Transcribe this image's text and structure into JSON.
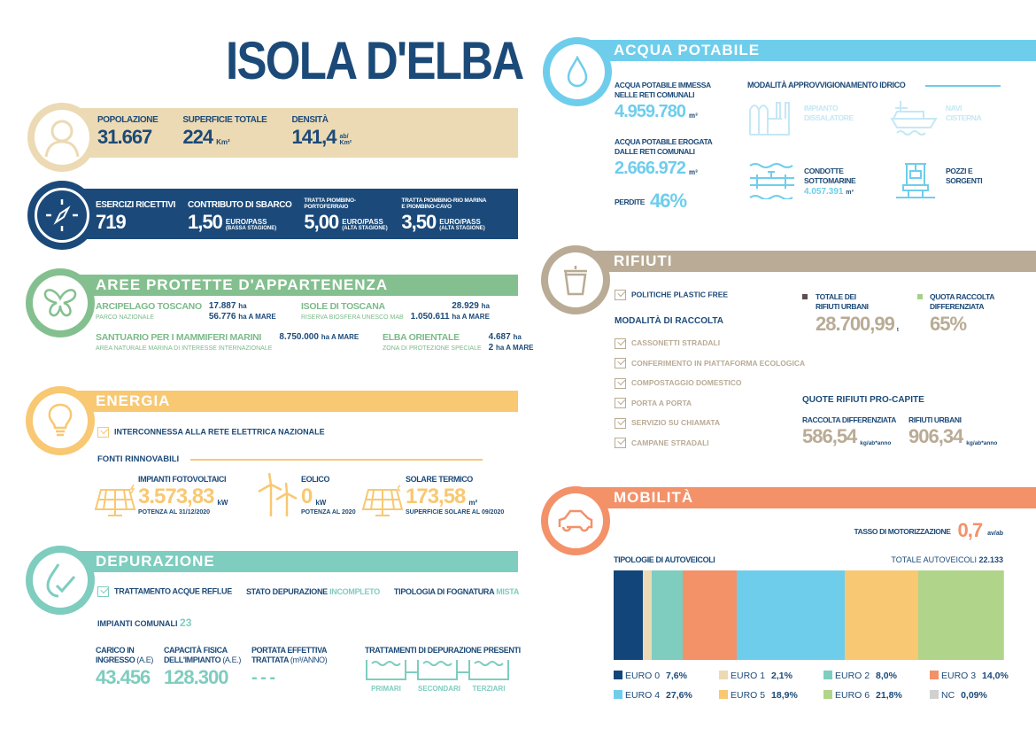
{
  "title": "ISOLA D'ELBA",
  "demografia": {
    "popolazione_label": "POPOLAZIONE",
    "popolazione": "31.667",
    "superficie_label": "SUPERFICIE TOTALE",
    "superficie": "224",
    "superficie_unit": "Km²",
    "densita_label": "DENSITÀ",
    "densita": "141,4",
    "densita_unit": "ab/ Km²"
  },
  "turismo": {
    "esercizi_label": "ESERCIZI RICETTIVI",
    "esercizi": "719",
    "contributo_label": "CONTRIBUTO DI SBARCO",
    "contributo": "1,50",
    "contributo_unit": "EURO/PASS",
    "contributo_note": "(BASSA STAGIONE)",
    "tratta1_label": "TRATTA PIOMBINO-PORTOFERRAIO",
    "tratta1": "5,00",
    "tratta1_unit": "EURO/PASS",
    "tratta1_note": "(ALTA STAGIONE)",
    "tratta2_label": "TRATTA PIOMBINO-RIO MARINA E PIOMBINO-CAVO",
    "tratta2": "3,50",
    "tratta2_unit": "EURO/PASS",
    "tratta2_note": "(ALTA STAGIONE)"
  },
  "aree": {
    "title": "AREE PROTETTE D'APPARTENENZA",
    "arcipelago": {
      "name": "ARCIPELAGO TOSCANO",
      "sub": "PARCO NAZIONALE",
      "v1": "17.887",
      "u1": "ha",
      "v2": "56.776",
      "u2": "ha A MARE"
    },
    "isole": {
      "name": "ISOLE DI TOSCANA",
      "sub": "RISERVA BIOSFERA UNESCO MAB",
      "v1": "28.929",
      "u1": "ha",
      "v2": "1.050.611",
      "u2": "ha A MARE"
    },
    "santuario": {
      "name": "SANTUARIO PER I MAMMIFERI MARINI",
      "sub": "AREA NATURALE MARINA DI INTERESSE INTERNAZIONALE",
      "v1": "8.750.000",
      "u1": "ha A MARE"
    },
    "elba": {
      "name": "ELBA ORIENTALE",
      "sub": "ZONA DI PROTEZIONE SPECIALE",
      "v1": "4.687",
      "u1": "ha",
      "v2": "2",
      "u2": "ha A MARE"
    }
  },
  "energia": {
    "title": "ENERGIA",
    "interconnessa": "INTERCONNESSA ALLA RETE ELETTRICA NAZIONALE",
    "fonti": "FONTI RINNOVABILI",
    "fv_label": "IMPIANTI FOTOVOLTAICI",
    "fv": "3.573,83",
    "fv_unit": "kW",
    "fv_note": "POTENZA AL 31/12/2020",
    "eolico_label": "EOLICO",
    "eolico": "0",
    "eolico_unit": "kW",
    "eolico_note": "POTENZA AL 2020",
    "st_label": "SOLARE TERMICO",
    "st": "173,58",
    "st_unit": "m²",
    "st_note": "SUPERFICIE SOLARE AL 09/2020"
  },
  "depurazione": {
    "title": "DEPURAZIONE",
    "trattamento": "TRATTAMENTO ACQUE REFLUE",
    "stato_label": "STATO DEPURAZIONE",
    "stato": "INCOMPLETO",
    "fognatura_label": "TIPOLOGIA DI FOGNATURA",
    "fognatura": "MISTA",
    "impianti_label": "IMPIANTI COMUNALI",
    "impianti": "23",
    "carico_l1": "CARICO IN",
    "carico_l2": "INGRESSO",
    "carico_u": "(A.E)",
    "carico": "43.456",
    "capacita_l1": "CAPACITÀ FISICA",
    "capacita_l2": "DELL'IMPIANTO",
    "capacita_u": "(A.E.)",
    "capacita": "128.300",
    "portata_l1": "PORTATA EFFETTIVA",
    "portata_l2": "TRATTATA",
    "portata_u": "(m³/ANNO)",
    "portata": "- - -",
    "trattamenti_label": "TRATTAMENTI DI DEPURAZIONE PRESENTI",
    "trattamenti": [
      "PRIMARI",
      "SECONDARI",
      "TERZIARI"
    ]
  },
  "acqua": {
    "title": "ACQUA POTABILE",
    "immessa_l1": "ACQUA POTABILE IMMESSA",
    "immessa_l2": "NELLE RETI COMUNALI",
    "immessa": "4.959.780",
    "immessa_u": "m³",
    "erogata_l1": "ACQUA POTABILE EROGATA",
    "erogata_l2": "DALLE RETI COMUNALI",
    "erogata": "2.666.972",
    "erogata_u": "m³",
    "perdite_label": "PERDITE",
    "perdite": "46%",
    "modalita": "MODALITÀ APPROVVIGIONAMENTO IDRICO",
    "dissalatore_l1": "IMPIANTO",
    "dissalatore_l2": "DISSALATORE",
    "navi_l1": "NAVI",
    "navi_l2": "CISTERNA",
    "condotte_l1": "CONDOTTE",
    "condotte_l2": "SOTTOMARINE",
    "condotte": "4.057.391",
    "condotte_u": "m³",
    "pozzi_l1": "POZZI E",
    "pozzi_l2": "SORGENTI"
  },
  "rifiuti": {
    "title": "RIFIUTI",
    "plastic": "POLITICHE PLASTIC FREE",
    "modalita": "MODALITÀ DI RACCOLTA",
    "raccolta": [
      "CASSONETTI STRADALI",
      "CONFERIMENTO IN PIATTAFORMA ECOLOGICA",
      "COMPOSTAGGIO DOMESTICO",
      "PORTA A PORTA",
      "SERVIZIO SU CHIAMATA",
      "CAMPANE STRADALI"
    ],
    "totale_l1": "TOTALE DEI",
    "totale_l2": "RIFIUTI URBANI",
    "totale": "28.700,99",
    "totale_u": "t",
    "quota_l1": "QUOTA RACCOLTA",
    "quota_l2": "DIFFERENZIATA",
    "quota": "65%",
    "procapite": "QUOTE RIFIUTI PRO-CAPITE",
    "rd_label": "RACCOLTA DIFFERENZIATA",
    "rd": "586,54",
    "rd_u": "kg/ab*anno",
    "ru_label": "RIFIUTI URBANI",
    "ru": "906,34",
    "ru_u": "kg/ab*anno",
    "colors": {
      "totale": "#5e4e4e",
      "quota": "#a6d18a"
    }
  },
  "mobilita": {
    "title": "MOBILITÀ",
    "tasso_label": "TASSO DI MOTORIZZAZIONE",
    "tasso": "0,7",
    "tasso_u": "av/ab",
    "tipologie": "TIPOLOGIE DI AUTOVEICOLI",
    "totale_label": "TOTALE AUTOVEICOLI",
    "totale": "22.133"
  },
  "chart_data": {
    "type": "bar",
    "stacked": true,
    "title": "TIPOLOGIE DI AUTOVEICOLI",
    "categories": [
      "EURO 0",
      "EURO 1",
      "EURO 2",
      "EURO 3",
      "EURO 4",
      "EURO 5",
      "EURO 6",
      "NC"
    ],
    "labels": [
      "7,6%",
      "2,1%",
      "8,0%",
      "14,0%",
      "27,6%",
      "18,9%",
      "21,8%",
      "0,09%"
    ],
    "values": [
      7.6,
      2.1,
      8.0,
      14.0,
      27.6,
      18.9,
      21.8,
      0.09
    ],
    "colors": [
      "#12457a",
      "#ecdab4",
      "#7ecdbf",
      "#f39169",
      "#6fcdec",
      "#f8c872",
      "#b0d48a",
      "#d0d0d0"
    ],
    "legend": "bottom"
  }
}
